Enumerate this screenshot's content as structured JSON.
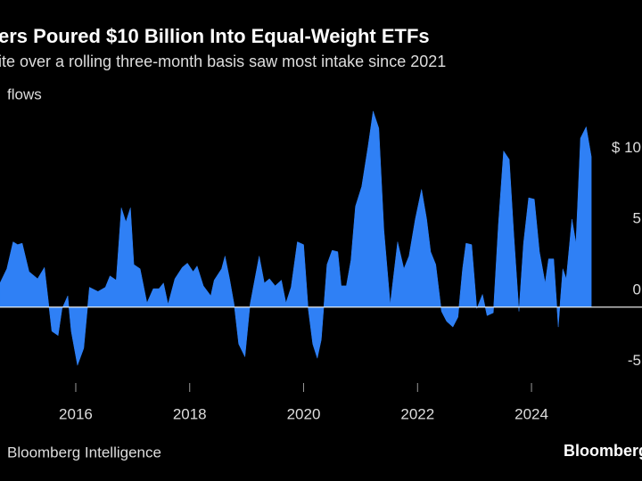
{
  "chart_data": {
    "type": "area",
    "title": "ers Poured $10 Billion Into Equal-Weight ETFs",
    "subtitle": "ite over a rolling three-month basis saw most intake since 2021",
    "y_label": "flows",
    "source": "Bloomberg Intelligence",
    "logo": "Bloomberg",
    "color": "#2f80f5",
    "x": [
      2014.67,
      2014.79,
      2014.9,
      2014.98,
      2015.06,
      2015.18,
      2015.33,
      2015.45,
      2015.58,
      2015.69,
      2015.76,
      2015.86,
      2015.92,
      2016.03,
      2016.14,
      2016.24,
      2016.39,
      2016.52,
      2016.6,
      2016.71,
      2016.8,
      2016.88,
      2016.96,
      2017.02,
      2017.13,
      2017.25,
      2017.36,
      2017.46,
      2017.54,
      2017.62,
      2017.74,
      2017.87,
      2017.96,
      2018.06,
      2018.13,
      2018.24,
      2018.37,
      2018.43,
      2018.56,
      2018.62,
      2018.7,
      2018.78,
      2018.86,
      2018.97,
      2019.06,
      2019.22,
      2019.31,
      2019.4,
      2019.5,
      2019.61,
      2019.69,
      2019.78,
      2019.89,
      2020.0,
      2020.08,
      2020.16,
      2020.24,
      2020.31,
      2020.41,
      2020.5,
      2020.6,
      2020.66,
      2020.75,
      2020.83,
      2020.91,
      2021.02,
      2021.13,
      2021.22,
      2021.32,
      2021.41,
      2021.52,
      2021.65,
      2021.76,
      2021.85,
      2021.96,
      2022.07,
      2022.16,
      2022.23,
      2022.32,
      2022.42,
      2022.51,
      2022.62,
      2022.71,
      2022.79,
      2022.85,
      2022.95,
      2023.04,
      2023.14,
      2023.22,
      2023.33,
      2023.42,
      2023.51,
      2023.61,
      2023.69,
      2023.78,
      2023.86,
      2023.95,
      2024.05,
      2024.14,
      2024.24,
      2024.3,
      2024.39,
      2024.47,
      2024.55,
      2024.61,
      2024.71,
      2024.78,
      2024.86,
      2024.96,
      2025.05
    ],
    "values": [
      1.7,
      2.7,
      4.6,
      4.4,
      4.5,
      2.5,
      2.0,
      2.8,
      -1.7,
      -2.0,
      -0.1,
      0.8,
      -1.7,
      -4.1,
      -2.9,
      1.4,
      1.1,
      1.4,
      2.2,
      1.9,
      7.0,
      6.0,
      7.0,
      3.0,
      2.7,
      0.3,
      1.3,
      1.3,
      1.7,
      0.2,
      2.0,
      2.8,
      3.1,
      2.5,
      2.9,
      1.5,
      0.8,
      1.9,
      2.7,
      3.6,
      2.0,
      0.2,
      -2.6,
      -3.5,
      0.2,
      3.6,
      1.7,
      2.0,
      1.5,
      1.9,
      0.3,
      1.4,
      4.6,
      4.4,
      -0.1,
      -2.6,
      -3.6,
      -2.3,
      3.0,
      4.0,
      3.9,
      1.5,
      1.5,
      3.3,
      7.1,
      8.5,
      11.3,
      13.8,
      12.6,
      5.4,
      0.2,
      4.6,
      2.7,
      3.6,
      6.2,
      8.3,
      6.2,
      3.9,
      3.0,
      -0.3,
      -1.0,
      -1.4,
      -0.7,
      2.7,
      4.5,
      4.4,
      -0.1,
      0.9,
      -0.6,
      -0.4,
      5.9,
      11.0,
      10.4,
      5.1,
      -0.3,
      4.5,
      7.7,
      7.6,
      3.9,
      1.7,
      3.4,
      3.4,
      -1.4,
      2.7,
      2.0,
      6.2,
      4.5,
      11.9,
      12.7,
      10.6
    ],
    "xlim": [
      2014.67,
      2025.94
    ],
    "xticks": [
      2016,
      2018,
      2020,
      2022,
      2024
    ],
    "ylim": [
      -7.1,
      14.1
    ],
    "yticks": [
      {
        "value": 10,
        "label": "$ 10"
      },
      5,
      0,
      -5
    ]
  }
}
